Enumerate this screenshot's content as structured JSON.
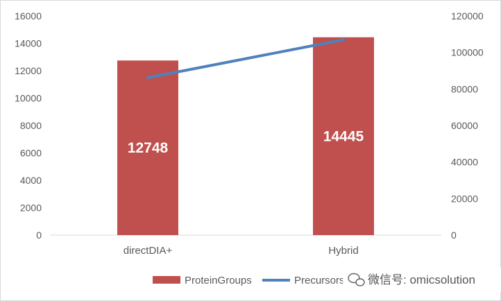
{
  "chart_data": {
    "type": "bar",
    "categories": [
      "directDIA+",
      "Hybrid"
    ],
    "series": [
      {
        "name": "ProteinGroups",
        "type": "bar",
        "axis": "left",
        "values": [
          12748,
          14445
        ],
        "data_labels": [
          "12748",
          "14445"
        ],
        "color": "#c0504d"
      },
      {
        "name": "Precursors",
        "type": "line",
        "axis": "right",
        "values": [
          86200,
          107000
        ],
        "color": "#4f81bd"
      }
    ],
    "y_left": {
      "min": 0,
      "max": 16000,
      "step": 2000,
      "ticks": [
        "0",
        "2000",
        "4000",
        "6000",
        "8000",
        "10000",
        "12000",
        "14000",
        "16000"
      ]
    },
    "y_right": {
      "min": 0,
      "max": 120000,
      "step": 20000,
      "ticks": [
        "0",
        "20000",
        "40000",
        "60000",
        "80000",
        "100000",
        "120000"
      ]
    },
    "legend_position": "bottom",
    "grid": false
  },
  "watermark": {
    "text": "微信号: omicsolution",
    "icon": "wechat-bubble-icon"
  }
}
